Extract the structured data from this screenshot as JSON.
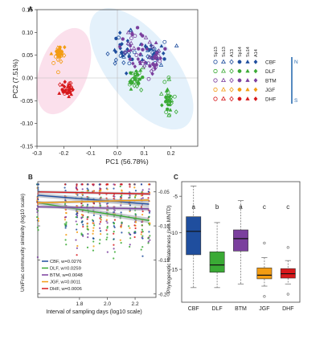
{
  "figure": {
    "colors": {
      "CBF": "#1f4e9e",
      "DLF": "#3aaa35",
      "BTM": "#7b3f9e",
      "JGF": "#f39c12",
      "DHF": "#d7191c"
    },
    "ellipse_colors": {
      "pink": "#fbe0ec",
      "blue": "#e4f1fb"
    },
    "scale_arrow": {
      "top": "N",
      "bottom": "S",
      "color": "#2b6cb0"
    }
  },
  "chart_data": [
    {
      "panel": "A",
      "type": "scatter",
      "title": "",
      "xlabel": "PC1 (56.78%)",
      "ylabel": "PC2 (7.51%)",
      "xlim": [
        -0.3,
        0.3
      ],
      "ylim": [
        -0.15,
        0.15
      ],
      "xticks": [
        "-0.3",
        "-0.2",
        "-0.1",
        "0.0",
        "0.1",
        "0.2"
      ],
      "yticks": [
        "0.15",
        "0.10",
        "0.05",
        "0.00",
        "-0.05",
        "-0.10",
        "-0.15"
      ],
      "grid": false,
      "reference_lines": {
        "x": 0,
        "y": 0
      },
      "legend": {
        "placement": "right",
        "columns": [
          "Sp13",
          "Su13",
          "A13",
          "Sp14",
          "Su14",
          "A14"
        ],
        "marker_shapes": [
          "circle-open",
          "triangle-open",
          "diamond-open",
          "circle-filled",
          "triangle-filled",
          "diamond-filled"
        ],
        "rows": [
          "CBF",
          "DLF",
          "BTM",
          "JGF",
          "DHF"
        ]
      },
      "series": [
        {
          "name": "CBF",
          "clusters": [
            {
              "center": [
                0.03,
                0.055
              ],
              "spread": [
                0.045,
                0.04
              ]
            },
            {
              "center": [
                0.13,
                0.055
              ],
              "spread": [
                0.05,
                0.025
              ]
            }
          ]
        },
        {
          "name": "DLF",
          "clusters": [
            {
              "center": [
                0.19,
                -0.05
              ],
              "spread": [
                0.018,
                0.04
              ]
            },
            {
              "center": [
                0.07,
                0.0
              ],
              "spread": [
                0.03,
                0.02
              ]
            }
          ]
        },
        {
          "name": "BTM",
          "clusters": [
            {
              "center": [
                0.07,
                0.06
              ],
              "spread": [
                0.045,
                0.04
              ]
            },
            {
              "center": [
                0.14,
                0.035
              ],
              "spread": [
                0.03,
                0.025
              ]
            }
          ]
        },
        {
          "name": "JGF",
          "clusters": [
            {
              "center": [
                -0.22,
                0.055
              ],
              "spread": [
                0.025,
                0.018
              ]
            }
          ]
        },
        {
          "name": "DHF",
          "clusters": [
            {
              "center": [
                -0.185,
                -0.025
              ],
              "spread": [
                0.022,
                0.015
              ]
            }
          ]
        }
      ]
    },
    {
      "panel": "B",
      "type": "scatter",
      "xlabel": "Interval of sampling days (log10 scale)",
      "ylabel": "UniFrac community similarity (log10 scale)",
      "xlim": [
        1.5,
        2.35
      ],
      "ylim": [
        -0.205,
        -0.035
      ],
      "xticks": [
        "1.8",
        "2.0",
        "2.2"
      ],
      "yticks": [
        "-0.05",
        "-0.10",
        "-0.15",
        "-0.20"
      ],
      "x_columns": [
        1.5,
        1.7,
        1.78,
        1.82,
        1.86,
        1.9,
        1.95,
        2.0,
        2.05,
        2.1,
        2.16,
        2.2,
        2.25,
        2.3
      ],
      "legend": {
        "placement": "bottom-left",
        "entries": [
          "CBF, w=0.0276",
          "DLF, w=0.0259",
          "BTM, w=0.0048",
          "JGF, w=0.0011",
          "DHF, w=0.0006"
        ]
      },
      "series": [
        {
          "name": "CBF",
          "fit": [
            [
              1.5,
              -0.055
            ],
            [
              2.3,
              -0.068
            ]
          ],
          "band": [
            [
              -0.058,
              -0.052
            ],
            [
              -0.072,
              -0.064
            ]
          ]
        },
        {
          "name": "DLF",
          "fit": [
            [
              1.5,
              -0.066
            ],
            [
              2.3,
              -0.092
            ]
          ],
          "band": [
            [
              -0.069,
              -0.063
            ],
            [
              -0.096,
              -0.088
            ]
          ]
        },
        {
          "name": "BTM",
          "fit": [
            [
              1.5,
              -0.072
            ],
            [
              2.3,
              -0.075
            ]
          ],
          "band": [
            [
              -0.074,
              -0.07
            ],
            [
              -0.078,
              -0.072
            ]
          ]
        },
        {
          "name": "JGF",
          "fit": [
            [
              1.5,
              -0.066
            ],
            [
              2.3,
              -0.062
            ]
          ],
          "band": [
            [
              -0.068,
              -0.064
            ],
            [
              -0.064,
              -0.06
            ]
          ]
        },
        {
          "name": "DHF",
          "fit": [
            [
              1.5,
              -0.05
            ],
            [
              2.3,
              -0.053
            ]
          ],
          "band": [
            [
              -0.052,
              -0.048
            ],
            [
              -0.055,
              -0.051
            ]
          ]
        }
      ]
    },
    {
      "panel": "C",
      "type": "box",
      "xlabel": "",
      "ylabel": "Phylogenetic relatedness (ses.MNTD)",
      "ylim": [
        -19.5,
        -3
      ],
      "yticks": [
        "-5",
        "-10",
        "-15"
      ],
      "categories": [
        "CBF",
        "DLF",
        "BTM",
        "JGF",
        "DHF"
      ],
      "letters": [
        "a",
        "b",
        "a",
        "c",
        "c"
      ],
      "boxes": [
        {
          "name": "CBF",
          "min": -17.5,
          "q1": -13.0,
          "median": -9.8,
          "q3": -7.8,
          "max": -3.6,
          "outliers": []
        },
        {
          "name": "DLF",
          "min": -17.5,
          "q1": -15.4,
          "median": -14.4,
          "q3": -12.6,
          "max": -8.6,
          "outliers": []
        },
        {
          "name": "BTM",
          "min": -17.0,
          "q1": -12.5,
          "median": -10.8,
          "q3": -9.6,
          "max": -5.6,
          "outliers": []
        },
        {
          "name": "JGF",
          "min": -17.3,
          "q1": -16.3,
          "median": -15.8,
          "q3": -14.8,
          "max": -13.4,
          "outliers": [
            -18.7,
            -11.4
          ]
        },
        {
          "name": "DHF",
          "min": -17.0,
          "q1": -16.2,
          "median": -15.6,
          "q3": -14.9,
          "max": -13.8,
          "outliers": [
            -18.4,
            -12.0
          ]
        }
      ]
    }
  ]
}
